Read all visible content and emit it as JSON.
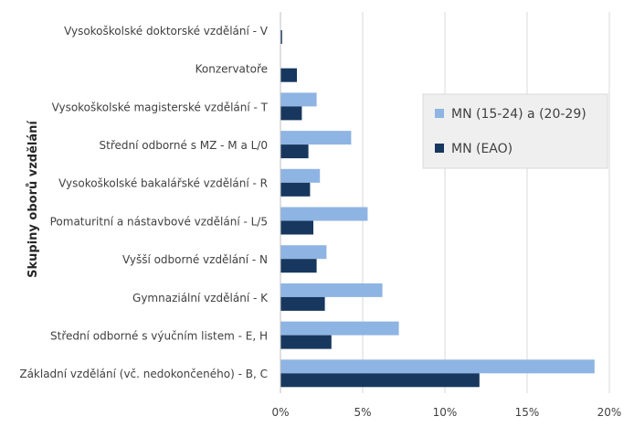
{
  "chart_data": {
    "type": "bar",
    "orientation": "horizontal",
    "title": "",
    "ylabel": "Skupiny oborů vzdělání",
    "xlabel": "",
    "xlim": [
      0,
      0.2
    ],
    "xticks": [
      "0%",
      "5%",
      "10%",
      "15%",
      "20%"
    ],
    "grid": true,
    "legend_position": "right",
    "categories": [
      "Vysokoškolské doktorské vzdělání - V",
      "Konzervatoře",
      "Vysokoškolské magisterské vzdělání - T",
      "Střední odborné s MZ - M a L/0",
      "Vysokoškolské bakalářské vzdělání - R",
      "Pomaturitní a nástavbové vzdělání - L/5",
      "Vyšší odborné vzdělání - N",
      "Gymnaziální vzdělání - K",
      "Střední odborné s výučním listem - E, H",
      "Základní vzdělání (vč. nedokončeného) - B, C"
    ],
    "series": [
      {
        "name": "MN (15-24) a (20-29)",
        "color": "#8eb4e3",
        "values": [
          0.0,
          0.0,
          0.022,
          0.043,
          0.024,
          0.053,
          0.028,
          0.062,
          0.072,
          0.191
        ]
      },
      {
        "name": "MN (EAO)",
        "color": "#17375e",
        "values": [
          0.001,
          0.01,
          0.013,
          0.017,
          0.018,
          0.02,
          0.022,
          0.027,
          0.031,
          0.121
        ]
      }
    ]
  }
}
